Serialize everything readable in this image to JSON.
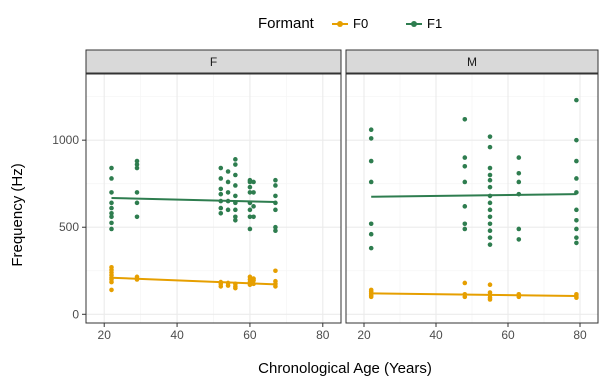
{
  "chart_data": {
    "type": "scatter",
    "xlabel": "Chronological Age (Years)",
    "ylabel": "Frequency (Hz)",
    "xlim": [
      15,
      85
    ],
    "ylim": [
      -50,
      1380
    ],
    "x_ticks": [
      20,
      40,
      60,
      80
    ],
    "y_ticks": [
      0,
      500,
      1000
    ],
    "grid": true,
    "legend": {
      "title": "Formant",
      "position": "top",
      "entries": [
        "F0",
        "F1"
      ]
    },
    "colors": {
      "F0": "#E69F00",
      "F1": "#2E7D4F",
      "strip_bg": "#D9D9D9",
      "panel_border": "#333333",
      "grid_major": "#EBEBEB",
      "grid_minor": "#F5F5F5"
    },
    "panels": [
      {
        "label": "F",
        "series": [
          {
            "name": "F0",
            "fit": [
              [
                22,
                210
              ],
              [
                67,
                172
              ]
            ],
            "points": [
              [
                22,
                140
              ],
              [
                22,
                185
              ],
              [
                22,
                200
              ],
              [
                22,
                210
              ],
              [
                22,
                225
              ],
              [
                22,
                240
              ],
              [
                22,
                255
              ],
              [
                22,
                270
              ],
              [
                29,
                200
              ],
              [
                29,
                215
              ],
              [
                52,
                160
              ],
              [
                52,
                175
              ],
              [
                52,
                185
              ],
              [
                54,
                165
              ],
              [
                54,
                180
              ],
              [
                56,
                150
              ],
              [
                56,
                160
              ],
              [
                56,
                175
              ],
              [
                60,
                170
              ],
              [
                60,
                185
              ],
              [
                60,
                200
              ],
              [
                60,
                215
              ],
              [
                61,
                175
              ],
              [
                61,
                195
              ],
              [
                61,
                205
              ],
              [
                67,
                160
              ],
              [
                67,
                175
              ],
              [
                67,
                190
              ],
              [
                67,
                250
              ]
            ]
          },
          {
            "name": "F1",
            "fit": [
              [
                22,
                668
              ],
              [
                67,
                645
              ]
            ],
            "points": [
              [
                22,
                490
              ],
              [
                22,
                525
              ],
              [
                22,
                560
              ],
              [
                22,
                580
              ],
              [
                22,
                610
              ],
              [
                22,
                640
              ],
              [
                22,
                700
              ],
              [
                22,
                780
              ],
              [
                22,
                840
              ],
              [
                29,
                560
              ],
              [
                29,
                640
              ],
              [
                29,
                700
              ],
              [
                29,
                840
              ],
              [
                29,
                860
              ],
              [
                29,
                880
              ],
              [
                52,
                580
              ],
              [
                52,
                610
              ],
              [
                52,
                650
              ],
              [
                52,
                690
              ],
              [
                52,
                720
              ],
              [
                52,
                780
              ],
              [
                52,
                840
              ],
              [
                54,
                600
              ],
              [
                54,
                650
              ],
              [
                54,
                700
              ],
              [
                54,
                760
              ],
              [
                54,
                820
              ],
              [
                56,
                540
              ],
              [
                56,
                560
              ],
              [
                56,
                600
              ],
              [
                56,
                640
              ],
              [
                56,
                680
              ],
              [
                56,
                740
              ],
              [
                56,
                800
              ],
              [
                56,
                860
              ],
              [
                56,
                890
              ],
              [
                60,
                490
              ],
              [
                60,
                560
              ],
              [
                60,
                600
              ],
              [
                60,
                640
              ],
              [
                60,
                700
              ],
              [
                60,
                730
              ],
              [
                60,
                760
              ],
              [
                60,
                770
              ],
              [
                61,
                560
              ],
              [
                61,
                620
              ],
              [
                61,
                700
              ],
              [
                61,
                760
              ],
              [
                67,
                480
              ],
              [
                67,
                500
              ],
              [
                67,
                600
              ],
              [
                67,
                640
              ],
              [
                67,
                680
              ],
              [
                67,
                740
              ],
              [
                67,
                770
              ]
            ]
          }
        ]
      },
      {
        "label": "M",
        "series": [
          {
            "name": "F0",
            "fit": [
              [
                22,
                120
              ],
              [
                79,
                105
              ]
            ],
            "points": [
              [
                22,
                100
              ],
              [
                22,
                110
              ],
              [
                22,
                120
              ],
              [
                22,
                130
              ],
              [
                22,
                140
              ],
              [
                48,
                100
              ],
              [
                48,
                115
              ],
              [
                48,
                180
              ],
              [
                55,
                85
              ],
              [
                55,
                95
              ],
              [
                55,
                110
              ],
              [
                55,
                125
              ],
              [
                55,
                170
              ],
              [
                63,
                100
              ],
              [
                63,
                115
              ],
              [
                79,
                95
              ],
              [
                79,
                105
              ],
              [
                79,
                115
              ]
            ]
          },
          {
            "name": "F1",
            "fit": [
              [
                22,
                675
              ],
              [
                79,
                690
              ]
            ],
            "points": [
              [
                22,
                380
              ],
              [
                22,
                460
              ],
              [
                22,
                520
              ],
              [
                22,
                760
              ],
              [
                22,
                880
              ],
              [
                22,
                1010
              ],
              [
                22,
                1060
              ],
              [
                48,
                490
              ],
              [
                48,
                520
              ],
              [
                48,
                620
              ],
              [
                48,
                760
              ],
              [
                48,
                850
              ],
              [
                48,
                900
              ],
              [
                48,
                1120
              ],
              [
                55,
                400
              ],
              [
                55,
                440
              ],
              [
                55,
                480
              ],
              [
                55,
                520
              ],
              [
                55,
                560
              ],
              [
                55,
                600
              ],
              [
                55,
                640
              ],
              [
                55,
                680
              ],
              [
                55,
                730
              ],
              [
                55,
                770
              ],
              [
                55,
                800
              ],
              [
                55,
                840
              ],
              [
                55,
                960
              ],
              [
                55,
                1020
              ],
              [
                63,
                430
              ],
              [
                63,
                490
              ],
              [
                63,
                690
              ],
              [
                63,
                760
              ],
              [
                63,
                810
              ],
              [
                63,
                900
              ],
              [
                79,
                410
              ],
              [
                79,
                440
              ],
              [
                79,
                490
              ],
              [
                79,
                540
              ],
              [
                79,
                600
              ],
              [
                79,
                700
              ],
              [
                79,
                780
              ],
              [
                79,
                880
              ],
              [
                79,
                1000
              ],
              [
                79,
                1230
              ]
            ]
          }
        ]
      }
    ]
  }
}
